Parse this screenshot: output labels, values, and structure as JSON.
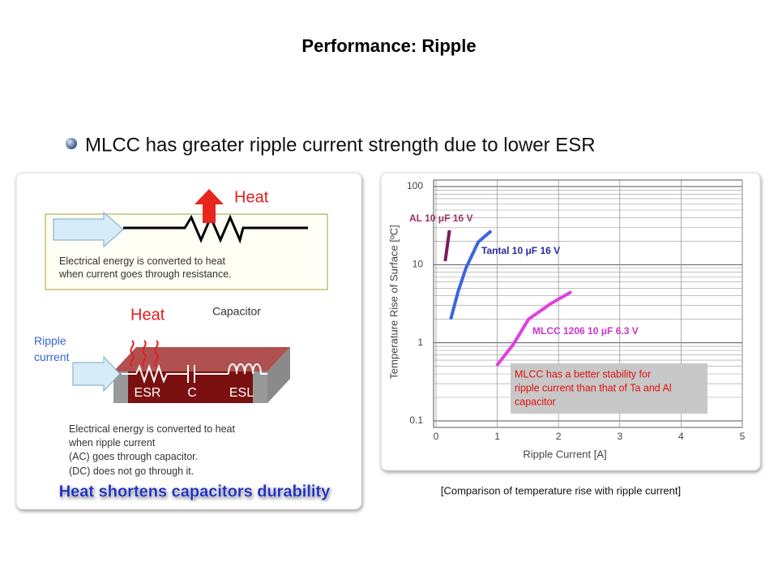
{
  "title": "Performance: Ripple",
  "bullet": "MLCC has greater ripple current strength due to lower ESR",
  "diagram": {
    "heat_top": "Heat",
    "resistor_note": [
      "Electrical energy is converted to heat",
      "when current goes through resistance."
    ],
    "heat_bottom": "Heat",
    "capacitor": "Capacitor",
    "ripple": [
      "Ripple",
      "current"
    ],
    "parts": [
      "ESR",
      "C",
      "ESL"
    ],
    "capacitor_note": [
      "Electrical energy is converted to heat",
      "when ripple current",
      "(AC) goes through capacitor.",
      "(DC) does not go through it."
    ],
    "banner": "Heat shortens capacitors durability"
  },
  "chart_data": {
    "type": "line",
    "xlabel": "Ripple Current [A]",
    "ylabel": "Temperature Rise of Surface [ºC]",
    "xlim": [
      0,
      5
    ],
    "xticks": [
      0,
      1,
      2,
      3,
      4,
      5
    ],
    "ylim": [
      0.1,
      100
    ],
    "yticks": [
      0.1,
      1,
      10,
      100
    ],
    "yscale": "log",
    "grid": true,
    "series": [
      {
        "name": "AL  10 μF 16 V",
        "color": "#7a1a5a",
        "x": [
          0.15,
          0.22
        ],
        "values": [
          11.1,
          27.6
        ]
      },
      {
        "name": "Tantal 10 μF 16 V",
        "color": "#3a66dd",
        "x": [
          0.24,
          0.36,
          0.49,
          0.69,
          0.9
        ],
        "values": [
          2.0,
          4.5,
          9.1,
          19.5,
          27
        ]
      },
      {
        "name": "MLCC 1206 10 μF 6.3 V",
        "color": "#e040e0",
        "x": [
          0.99,
          1.26,
          1.51,
          1.88,
          2.21
        ],
        "values": [
          0.51,
          0.95,
          2.0,
          3.2,
          4.5
        ]
      }
    ],
    "annotation": [
      "MLCC has a better stability for",
      "ripple current than that of Ta and Al",
      "capacitor"
    ]
  },
  "caption": "[Comparison of temperature rise with ripple current]"
}
